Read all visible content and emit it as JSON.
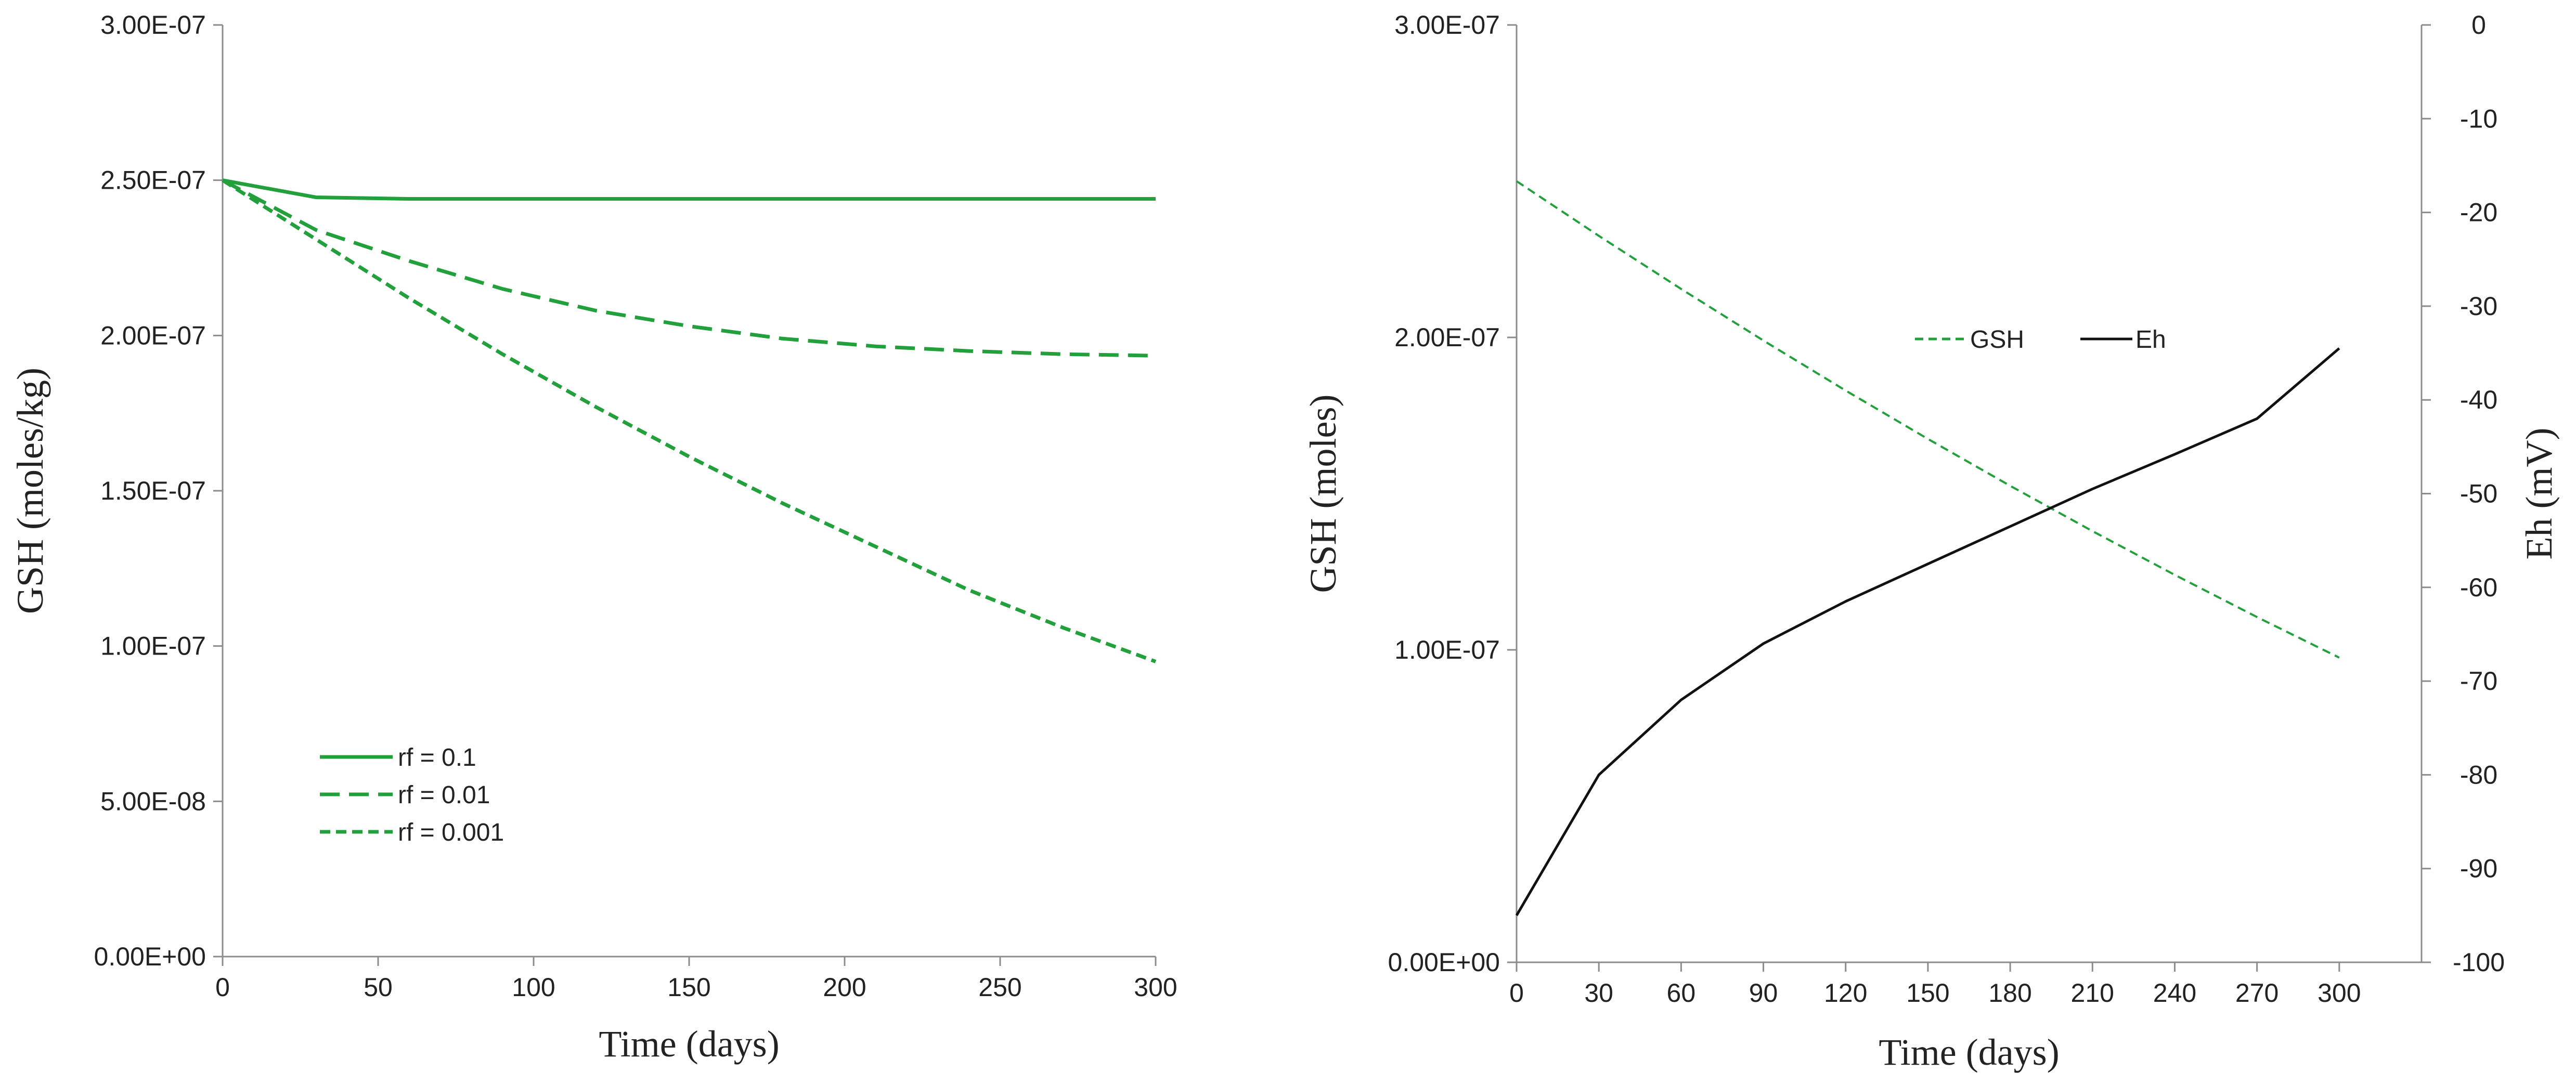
{
  "colors": {
    "gsh": "#22a03c",
    "eh": "#111111",
    "axis": "#8c8c8c"
  },
  "chart_data": [
    {
      "type": "line",
      "xlabel": "Time (days)",
      "ylabel": "GSH (moles/kg)",
      "xlim": [
        0,
        300
      ],
      "ylim": [
        0,
        3e-07
      ],
      "x_ticks": [
        0,
        50,
        100,
        150,
        200,
        250,
        300
      ],
      "x_tick_labels": [
        "0",
        "50",
        "100",
        "150",
        "200",
        "250",
        "300"
      ],
      "y_ticks": [
        0,
        5e-08,
        1e-07,
        1.5e-07,
        2e-07,
        2.5e-07,
        3e-07
      ],
      "y_tick_labels": [
        "0.00E+00",
        "5.00E-08",
        "1.00E-07",
        "1.50E-07",
        "2.00E-07",
        "2.50E-07",
        "3.00E-07"
      ],
      "grid": false,
      "legend_position": "bottom-left",
      "series": [
        {
          "name": "rf = 0.1",
          "style": "solid",
          "color": "#22a03c",
          "x": [
            0,
            30,
            60,
            90,
            120,
            150,
            180,
            210,
            240,
            270,
            300
          ],
          "y": [
            2.5e-07,
            2.445e-07,
            2.44e-07,
            2.44e-07,
            2.44e-07,
            2.44e-07,
            2.44e-07,
            2.44e-07,
            2.44e-07,
            2.44e-07,
            2.44e-07
          ]
        },
        {
          "name": "rf = 0.01",
          "style": "dashed",
          "color": "#22a03c",
          "x": [
            0,
            30,
            60,
            90,
            120,
            150,
            180,
            210,
            240,
            270,
            300
          ],
          "y": [
            2.5e-07,
            2.34e-07,
            2.24e-07,
            2.15e-07,
            2.08e-07,
            2.03e-07,
            1.99e-07,
            1.965e-07,
            1.95e-07,
            1.94e-07,
            1.935e-07
          ]
        },
        {
          "name": "rf = 0.001",
          "style": "dotted-dash",
          "color": "#22a03c",
          "x": [
            0,
            30,
            60,
            90,
            120,
            150,
            180,
            210,
            240,
            270,
            300
          ],
          "y": [
            2.5e-07,
            2.31e-07,
            2.12e-07,
            1.94e-07,
            1.77e-07,
            1.61e-07,
            1.46e-07,
            1.32e-07,
            1.18e-07,
            1.06e-07,
            9.5e-08
          ]
        }
      ]
    },
    {
      "type": "line",
      "xlabel": "Time (days)",
      "ylabel": "GSH (moles)",
      "y2label": "Eh (mV)",
      "xlim": [
        0,
        330
      ],
      "ylim": [
        0,
        3e-07
      ],
      "y2lim": [
        -100,
        0
      ],
      "x_ticks": [
        0,
        30,
        60,
        90,
        120,
        150,
        180,
        210,
        240,
        270,
        300
      ],
      "x_tick_labels": [
        "0",
        "30",
        "60",
        "90",
        "120",
        "150",
        "180",
        "210",
        "240",
        "270",
        "300"
      ],
      "y_ticks": [
        0,
        1e-07,
        2e-07,
        3e-07
      ],
      "y_tick_labels": [
        "0.00E+00",
        "1.00E-07",
        "2.00E-07",
        "3.00E-07"
      ],
      "y2_ticks": [
        0,
        -10,
        -20,
        -30,
        -40,
        -50,
        -60,
        -70,
        -80,
        -90,
        -100
      ],
      "y2_tick_labels": [
        "0",
        "-10",
        "-20",
        "-30",
        "-40",
        "-50",
        "-60",
        "-70",
        "-80",
        "-90",
        "-100"
      ],
      "grid": false,
      "legend_position": "center-top",
      "series": [
        {
          "name": "GSH",
          "axis": "left",
          "style": "dashed",
          "color": "#22a03c",
          "x": [
            0,
            30,
            60,
            90,
            120,
            150,
            180,
            210,
            240,
            270,
            300
          ],
          "y": [
            2.5e-07,
            2.325e-07,
            2.155e-07,
            1.99e-07,
            1.83e-07,
            1.675e-07,
            1.525e-07,
            1.38e-07,
            1.24e-07,
            1.105e-07,
            9.75e-08
          ]
        },
        {
          "name": "Eh",
          "axis": "right",
          "style": "solid",
          "color": "#111111",
          "x": [
            0,
            30,
            60,
            90,
            120,
            150,
            180,
            210,
            240,
            270,
            300
          ],
          "y": [
            -95,
            -80,
            -72,
            -66,
            -61.5,
            -57.5,
            -53.5,
            -49.5,
            -45.8,
            -42,
            -34.5
          ]
        }
      ]
    }
  ]
}
